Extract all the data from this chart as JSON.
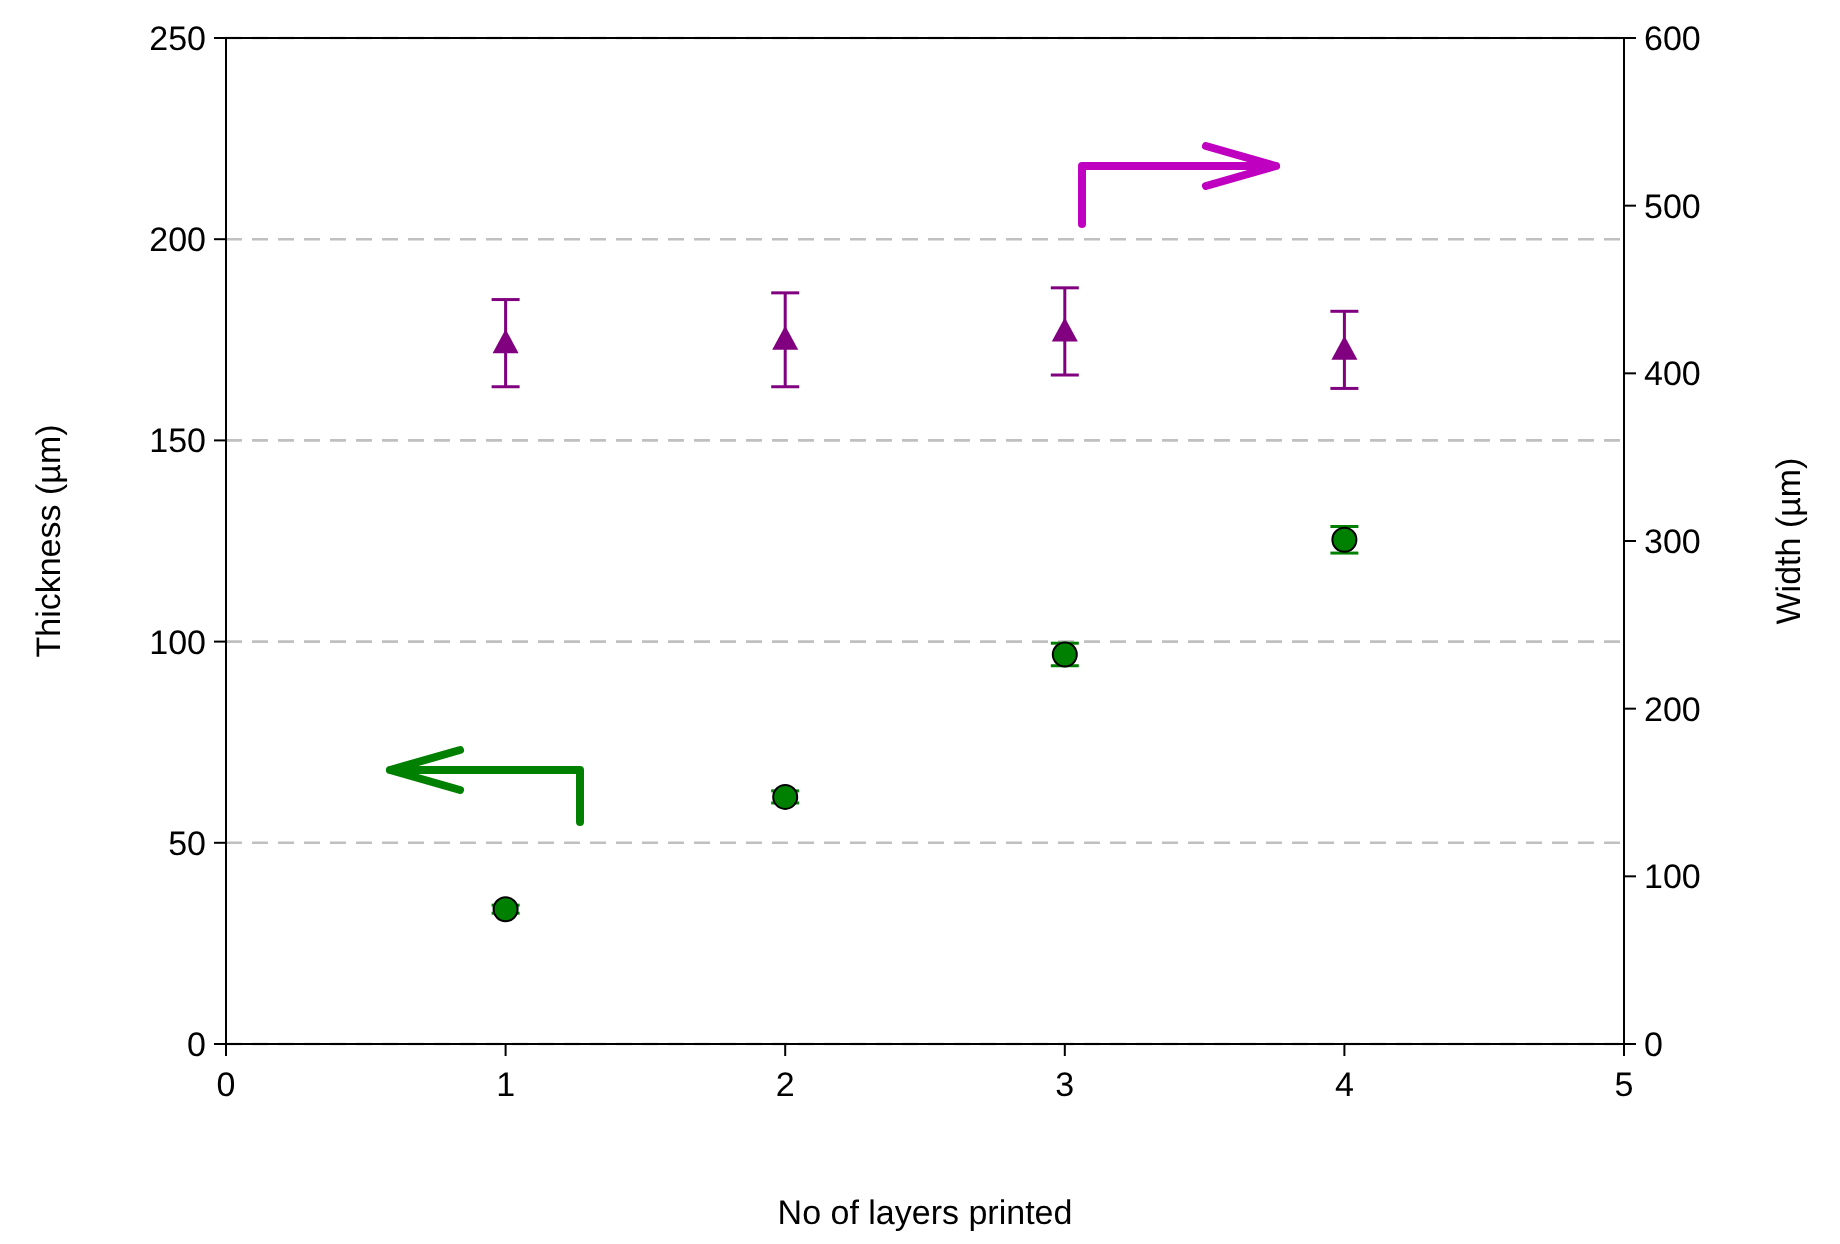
{
  "chart_data": {
    "type": "scatter",
    "xlabel": "No of layers printed",
    "ylabel": "Thickness (µm)",
    "y2label": "Width (µm)",
    "x": [
      1,
      2,
      3,
      4
    ],
    "xlim": [
      0,
      5
    ],
    "xticks": [
      0,
      1,
      2,
      3,
      4,
      5
    ],
    "ylim": [
      0,
      250
    ],
    "yticks": [
      0,
      50,
      100,
      150,
      200,
      250
    ],
    "y2lim": [
      0,
      600
    ],
    "y2ticks": [
      0,
      100,
      200,
      300,
      400,
      500,
      600
    ],
    "grid": "y",
    "series": [
      {
        "color": "#008000",
        "marker": "circle",
        "values": [
          33.5,
          61.4,
          96.8,
          125.3
        ],
        "errors": [
          1,
          1.5,
          2.8,
          3.3
        ]
      },
      {
        "color": "#800080",
        "marker": "triangle",
        "axis": "y2",
        "values": [
          418,
          420,
          425,
          414
        ],
        "errors": [
          26,
          28,
          26,
          23
        ]
      }
    ]
  }
}
